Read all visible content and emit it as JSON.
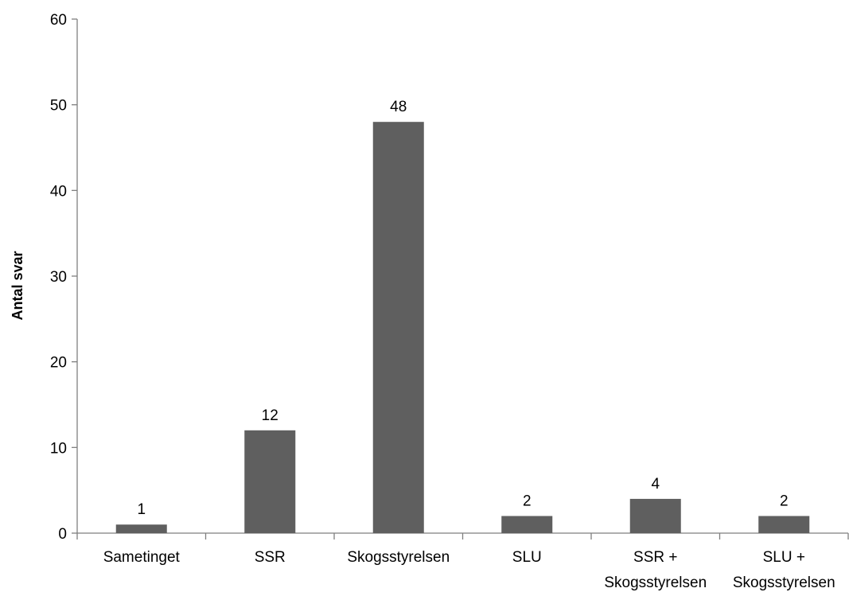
{
  "chart_data": {
    "type": "bar",
    "categories": [
      [
        "Sametinget"
      ],
      [
        "SSR"
      ],
      [
        "Skogsstyrelsen"
      ],
      [
        "SLU"
      ],
      [
        "SSR +",
        "Skogsstyrelsen"
      ],
      [
        "SLU +",
        "Skogsstyrelsen"
      ]
    ],
    "values": [
      1,
      12,
      48,
      2,
      4,
      2
    ],
    "data_labels": [
      "1",
      "12",
      "48",
      "2",
      "4",
      "2"
    ],
    "title": "",
    "xlabel": "",
    "ylabel": "Antal svar",
    "ylim": [
      0,
      60
    ],
    "yticks": [
      "0",
      "10",
      "20",
      "30",
      "40",
      "50",
      "60"
    ],
    "grid": false,
    "legend": "none",
    "bar_color": "#5f5f5f"
  }
}
